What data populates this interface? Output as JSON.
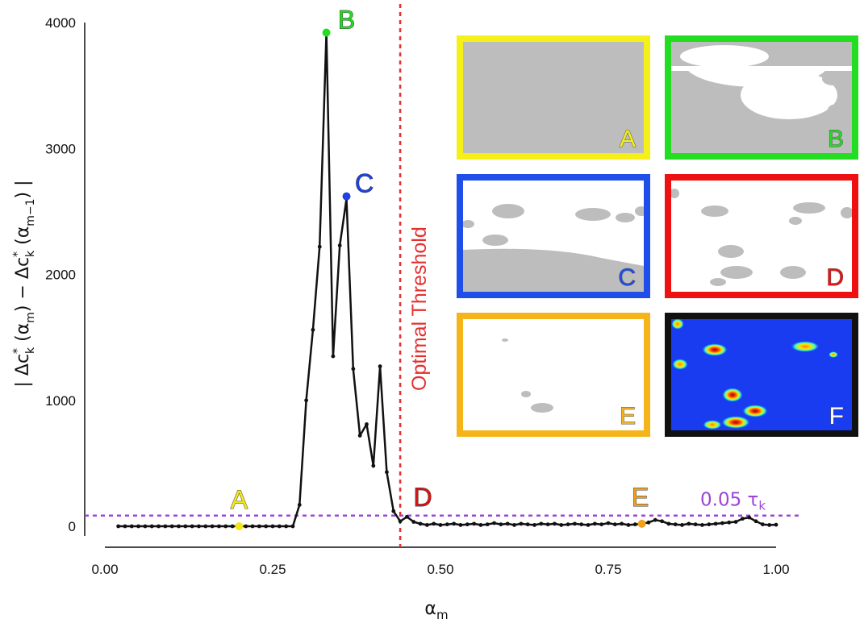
{
  "chart_data": {
    "type": "line",
    "xlabel": "α",
    "xlabel_sub": "m",
    "ylabel": "| Δc",
    "ylabel_parts": [
      "| Δc",
      "*",
      "k",
      " (α",
      "m",
      ") − Δc",
      "*",
      "k",
      " (α",
      "m−1",
      ") |"
    ],
    "xlim": [
      0.0,
      1.0
    ],
    "ylim": [
      0,
      4000
    ],
    "xticks": [
      0.0,
      0.25,
      0.5,
      0.75,
      1.0
    ],
    "xtick_labels": [
      "0.00",
      "0.25",
      "0.50",
      "0.75",
      "1.00"
    ],
    "yticks": [
      0,
      1000,
      2000,
      3000,
      4000
    ],
    "ytick_labels": [
      "0",
      "1000",
      "2000",
      "3000",
      "4000"
    ],
    "grid": false,
    "series": [
      {
        "color": "#111111",
        "x": [
          0.02,
          0.03,
          0.04,
          0.05,
          0.06,
          0.07,
          0.08,
          0.09,
          0.1,
          0.11,
          0.12,
          0.13,
          0.14,
          0.15,
          0.16,
          0.17,
          0.18,
          0.19,
          0.2,
          0.21,
          0.22,
          0.23,
          0.24,
          0.25,
          0.26,
          0.27,
          0.28,
          0.29,
          0.3,
          0.31,
          0.32,
          0.33,
          0.34,
          0.35,
          0.36,
          0.37,
          0.38,
          0.39,
          0.4,
          0.41,
          0.42,
          0.43,
          0.44,
          0.45,
          0.46,
          0.47,
          0.48,
          0.49,
          0.5,
          0.51,
          0.52,
          0.53,
          0.54,
          0.55,
          0.56,
          0.57,
          0.58,
          0.59,
          0.6,
          0.61,
          0.62,
          0.63,
          0.64,
          0.65,
          0.66,
          0.67,
          0.68,
          0.69,
          0.7,
          0.71,
          0.72,
          0.73,
          0.74,
          0.75,
          0.76,
          0.77,
          0.78,
          0.79,
          0.8,
          0.81,
          0.82,
          0.83,
          0.84,
          0.85,
          0.86,
          0.87,
          0.88,
          0.89,
          0.9,
          0.91,
          0.92,
          0.93,
          0.94,
          0.95,
          0.96,
          0.97,
          0.98,
          0.99,
          1.0
        ],
        "y": [
          0,
          0,
          0,
          0,
          0,
          0,
          0,
          0,
          0,
          0,
          0,
          0,
          0,
          0,
          0,
          0,
          0,
          0,
          0,
          0,
          0,
          0,
          0,
          0,
          0,
          0,
          0,
          170,
          1000,
          1560,
          2220,
          3920,
          1350,
          2230,
          2600,
          1250,
          720,
          810,
          480,
          1270,
          430,
          120,
          40,
          75,
          35,
          20,
          10,
          20,
          10,
          15,
          20,
          10,
          15,
          20,
          10,
          15,
          25,
          15,
          20,
          10,
          20,
          15,
          10,
          20,
          15,
          20,
          10,
          15,
          20,
          15,
          10,
          20,
          15,
          25,
          15,
          20,
          10,
          15,
          20,
          30,
          50,
          40,
          20,
          15,
          10,
          20,
          15,
          10,
          15,
          20,
          25,
          30,
          35,
          60,
          70,
          40,
          15,
          10,
          12
        ]
      }
    ],
    "threshold": {
      "x": 0.44,
      "label": "Optimal Threshold",
      "color": "#e53030"
    },
    "tau_line": {
      "y": 85,
      "label": "0.05 τ",
      "label_sub": "k",
      "color": "#9b45d9"
    },
    "annotations": [
      {
        "text": "A",
        "x": 0.2,
        "y": 0,
        "color": "#f5e61a",
        "marker": true
      },
      {
        "text": "B",
        "x": 0.33,
        "y": 3920,
        "color": "#22dd22",
        "marker": true
      },
      {
        "text": "C",
        "x": 0.36,
        "y": 2620,
        "color": "#2040e0",
        "marker": true
      },
      {
        "text": "D",
        "x": 0.44,
        "y": 0,
        "color": "#dd1111",
        "marker": false
      },
      {
        "text": "E",
        "x": 0.8,
        "y": 20,
        "color": "#f0a020",
        "marker": true
      }
    ],
    "panels": [
      {
        "label": "A",
        "border": "#f5ef1a",
        "content": "gray-full"
      },
      {
        "label": "B",
        "border": "#22dd22",
        "content": "gray-noisy"
      },
      {
        "label": "C",
        "border": "#1f4ee8",
        "content": "gray-partial"
      },
      {
        "label": "D",
        "border": "#ee1111",
        "content": "blobs"
      },
      {
        "label": "E",
        "border": "#f5b51a",
        "content": "sparse"
      },
      {
        "label": "F",
        "border": "#111111",
        "content": "heatmap"
      }
    ]
  }
}
